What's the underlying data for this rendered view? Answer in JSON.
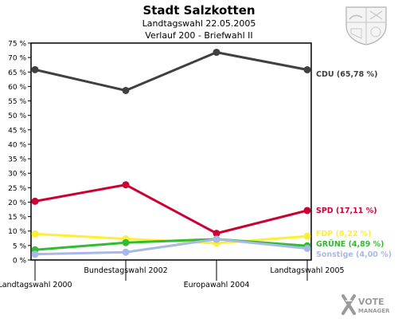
{
  "header": {
    "title": "Stadt Salzkotten",
    "subtitle1": "Landtagswahl 22.05.2005",
    "subtitle2": "Verlauf 200 - Briefwahl II"
  },
  "logo": {
    "icon": "vote-manager-logo-icon",
    "line1": "VOTE",
    "line2": "MANAGER"
  },
  "crest": {
    "icon": "coat-of-arms-icon"
  },
  "chart_data": {
    "type": "line",
    "title": "Stadt Salzkotten",
    "x": [
      "Landtagswahl 2000",
      "Bundestagswahl 2002",
      "Europawahl 2004",
      "Landtagswahl 2005"
    ],
    "ylim": [
      0,
      75
    ],
    "yticks": [
      "0 %",
      "5 %",
      "10 %",
      "15 %",
      "20 %",
      "25 %",
      "30 %",
      "35 %",
      "40 %",
      "45 %",
      "50 %",
      "55 %",
      "60 %",
      "65 %",
      "70 %",
      "75 %"
    ],
    "grid": false,
    "legend": "right-inline",
    "series": [
      {
        "name": "CDU",
        "label": "CDU (65,78 %)",
        "color": "#404040",
        "values": [
          65.8,
          58.6,
          71.8,
          65.78
        ]
      },
      {
        "name": "SPD",
        "label": "SPD (17,11 %)",
        "color": "#cc0033",
        "values": [
          20.3,
          26.0,
          9.2,
          17.11
        ]
      },
      {
        "name": "FDP",
        "label": "FDP (8,22 %)",
        "color": "#ffee33",
        "values": [
          9.0,
          7.3,
          5.8,
          8.22
        ]
      },
      {
        "name": "GRÜNE",
        "label": "GRÜNE (4,89 %)",
        "color": "#33bb33",
        "values": [
          3.5,
          6.0,
          7.2,
          4.89
        ]
      },
      {
        "name": "Sonstige",
        "label": "Sonstige (4,00 %)",
        "color": "#a8b8e8",
        "values": [
          2.0,
          2.7,
          7.2,
          4.0
        ]
      }
    ]
  }
}
